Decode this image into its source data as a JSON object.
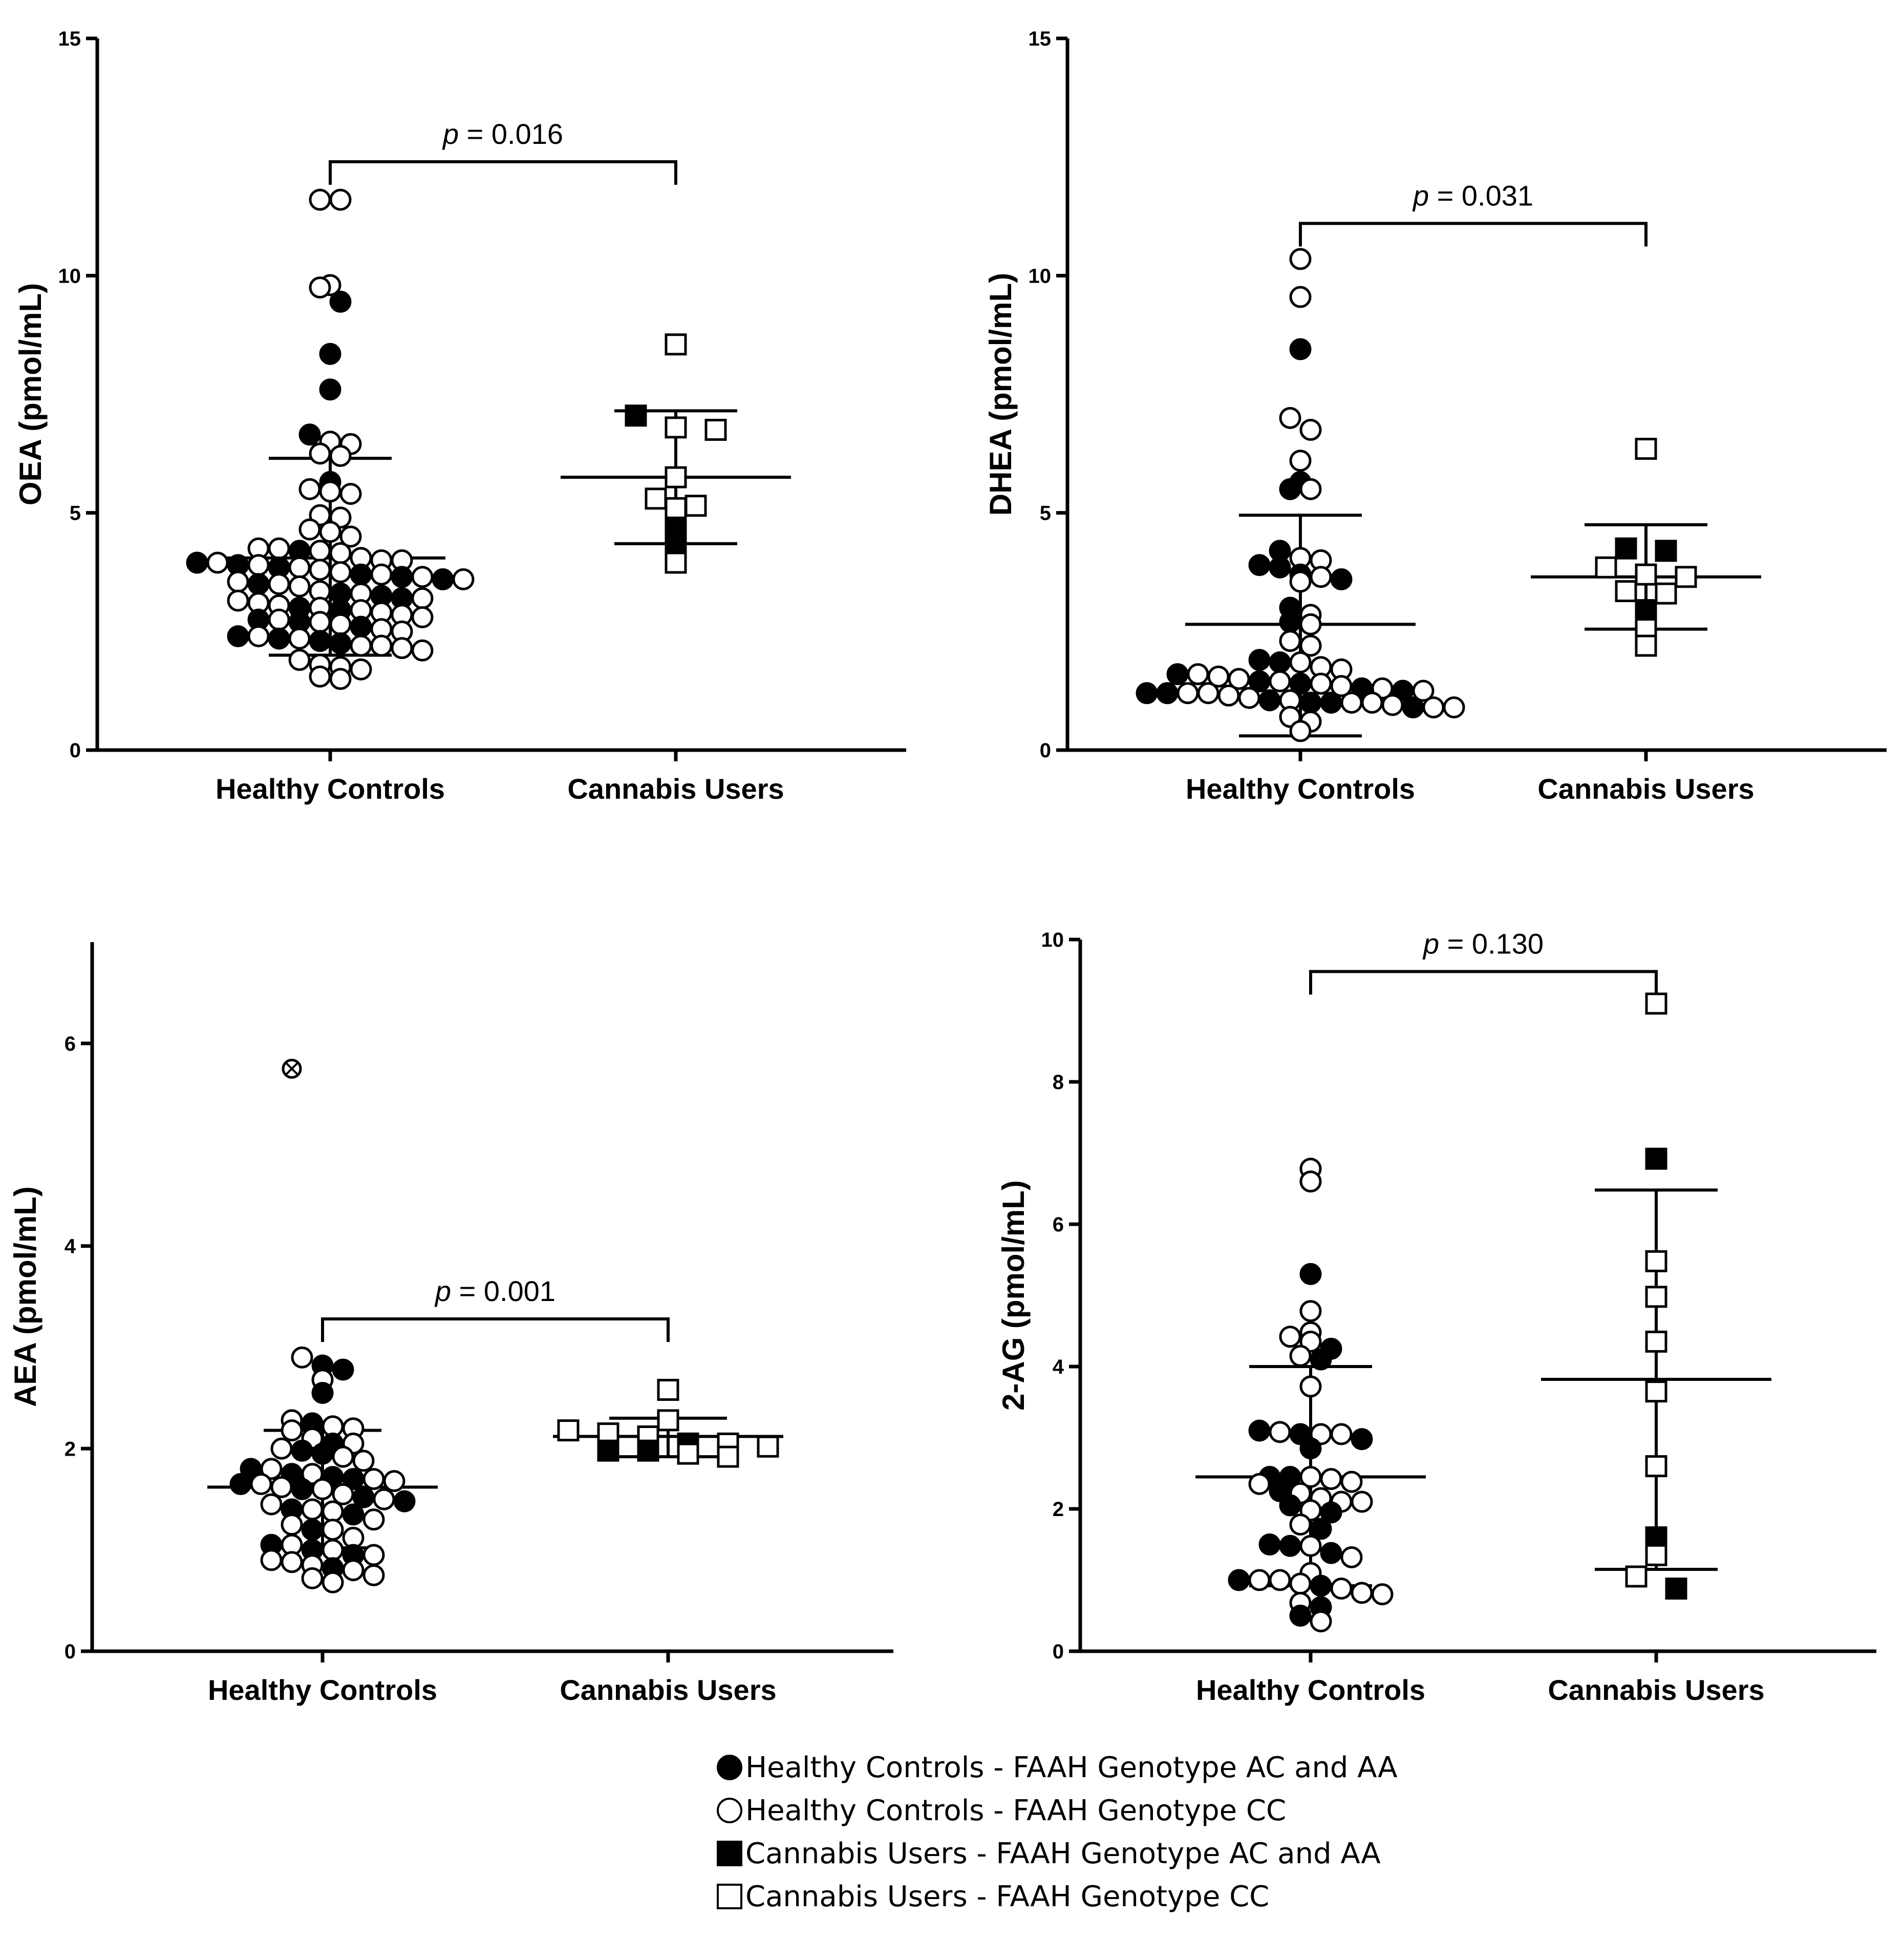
{
  "legend": {
    "items": [
      {
        "symbol": "circle-fill",
        "label": "Healthy Controls - FAAH Genotype AC and AA"
      },
      {
        "symbol": "circle-open",
        "label": "Healthy Controls - FAAH Genotype CC"
      },
      {
        "symbol": "square-fill",
        "label": "Cannabis Users - FAAH Genotype AC and AA"
      },
      {
        "symbol": "square-open",
        "label": "Cannabis Users - FAAH Genotype CC"
      }
    ]
  },
  "chart_data": [
    {
      "type": "scatter",
      "ylabel": "OEA (pmol/mL)",
      "ylim": [
        0,
        15
      ],
      "yticks": [
        0,
        5,
        10,
        15
      ],
      "categories": [
        "Healthy Controls",
        "Cannabis Users"
      ],
      "p_value_text": "= 0.016",
      "p_label": "p",
      "bracket_y": 12.4,
      "groups": [
        {
          "category": "Healthy Controls",
          "mean": 4.05,
          "sd_low": 2.0,
          "sd_high": 6.15,
          "filled": [
            9.45,
            8.35,
            7.6,
            6.65,
            5.65,
            4.2,
            3.95,
            3.9,
            3.85,
            3.7,
            3.65,
            3.6,
            3.5,
            3.3,
            3.25,
            3.2,
            3.0,
            2.95,
            2.75,
            2.7,
            2.6,
            2.4,
            2.35,
            2.3,
            2.25
          ],
          "open": [
            11.6,
            11.6,
            9.8,
            9.75,
            6.5,
            6.45,
            6.25,
            6.2,
            5.5,
            5.45,
            5.4,
            4.95,
            4.9,
            4.65,
            4.6,
            4.5,
            4.25,
            4.25,
            4.2,
            4.15,
            4.05,
            4.0,
            4.0,
            3.95,
            3.9,
            3.85,
            3.8,
            3.75,
            3.7,
            3.65,
            3.6,
            3.55,
            3.5,
            3.45,
            3.35,
            3.3,
            3.2,
            3.15,
            3.1,
            3.05,
            3.0,
            2.95,
            2.9,
            2.85,
            2.8,
            2.75,
            2.7,
            2.65,
            2.55,
            2.5,
            2.4,
            2.35,
            2.2,
            2.2,
            2.15,
            2.1,
            1.9,
            1.8,
            1.75,
            1.7,
            1.55,
            1.5
          ]
        },
        {
          "category": "Cannabis Users",
          "mean": 5.75,
          "sd_low": 4.35,
          "sd_high": 7.15,
          "filled": [
            7.05,
            4.65,
            4.25
          ],
          "open": [
            8.55,
            6.8,
            6.75,
            5.75,
            5.3,
            5.15,
            5.1,
            3.95
          ]
        }
      ]
    },
    {
      "type": "scatter",
      "ylabel": "DHEA (pmol/mL)",
      "ylim": [
        0,
        15
      ],
      "yticks": [
        0,
        5,
        10,
        15
      ],
      "categories": [
        "Healthy Controls",
        "Cannabis Users"
      ],
      "p_value_text": "= 0.031",
      "p_label": "p",
      "bracket_y": 11.1,
      "groups": [
        {
          "category": "Healthy Controls",
          "mean": 2.65,
          "sd_low": 0.3,
          "sd_high": 4.95,
          "filled": [
            8.45,
            5.65,
            5.5,
            4.2,
            3.9,
            3.85,
            3.7,
            3.6,
            3.0,
            2.7,
            1.9,
            1.85,
            1.6,
            1.45,
            1.4,
            1.3,
            1.25,
            1.2,
            1.2,
            1.05,
            1.0,
            1.0,
            0.9
          ],
          "open": [
            10.35,
            9.55,
            7.0,
            6.75,
            6.1,
            5.5,
            4.05,
            4.0,
            3.65,
            3.55,
            2.85,
            2.65,
            2.3,
            2.2,
            1.85,
            1.75,
            1.7,
            1.6,
            1.55,
            1.5,
            1.45,
            1.4,
            1.35,
            1.3,
            1.25,
            1.2,
            1.2,
            1.15,
            1.1,
            1.05,
            1.0,
            1.0,
            0.95,
            0.9,
            0.9,
            0.7,
            0.6,
            0.4
          ]
        },
        {
          "category": "Cannabis Users",
          "mean": 3.65,
          "sd_low": 2.55,
          "sd_high": 4.75,
          "filled": [
            4.25,
            4.2,
            2.95
          ],
          "open": [
            6.35,
            3.85,
            3.7,
            3.65,
            3.35,
            3.3,
            2.55,
            2.2
          ]
        }
      ]
    },
    {
      "type": "scatter",
      "ylabel": "AEA (pmol/mL)",
      "ylim": [
        0,
        7
      ],
      "yticks": [
        0,
        2,
        4,
        6
      ],
      "categories": [
        "Healthy Controls",
        "Cannabis Users"
      ],
      "p_value_text": "= 0.001",
      "p_label": "p",
      "bracket_y": 3.28,
      "outlier": 5.75,
      "groups": [
        {
          "category": "Healthy Controls",
          "mean": 1.62,
          "sd_low": 1.02,
          "sd_high": 2.18,
          "filled": [
            2.82,
            2.78,
            2.55,
            2.25,
            2.05,
            1.98,
            1.95,
            1.8,
            1.75,
            1.72,
            1.7,
            1.65,
            1.6,
            1.52,
            1.48,
            1.4,
            1.35,
            1.2,
            1.05,
            1.0,
            0.95,
            0.82
          ],
          "open": [
            2.9,
            2.68,
            2.28,
            2.22,
            2.2,
            2.18,
            2.1,
            2.05,
            2.0,
            1.92,
            1.88,
            1.8,
            1.75,
            1.7,
            1.68,
            1.65,
            1.62,
            1.6,
            1.55,
            1.5,
            1.45,
            1.4,
            1.38,
            1.3,
            1.25,
            1.2,
            1.12,
            1.05,
            1.0,
            0.95,
            0.9,
            0.88,
            0.85,
            0.8,
            0.75,
            0.72,
            0.68
          ]
        },
        {
          "category": "Cannabis Users",
          "mean": 2.12,
          "sd_low": 1.92,
          "sd_high": 2.3,
          "filled": [
            2.05,
            1.98,
            1.98
          ],
          "open": [
            2.58,
            2.28,
            2.18,
            2.15,
            2.12,
            2.05,
            2.02,
            1.95,
            1.92
          ]
        }
      ]
    },
    {
      "type": "scatter",
      "ylabel": "2-AG (pmol/mL)",
      "ylim": [
        0,
        10
      ],
      "yticks": [
        0,
        2,
        4,
        6,
        8,
        10
      ],
      "categories": [
        "Healthy Controls",
        "Cannabis Users"
      ],
      "p_value_text": "= 0.130",
      "p_label": "p",
      "bracket_y": 9.55,
      "groups": [
        {
          "category": "Healthy Controls",
          "mean": 2.45,
          "sd_low": 0.92,
          "sd_high": 4.0,
          "filled": [
            5.3,
            4.25,
            4.1,
            3.1,
            3.05,
            2.98,
            2.85,
            2.45,
            2.45,
            2.25,
            2.05,
            1.95,
            1.72,
            1.5,
            1.48,
            1.38,
            1.0,
            0.92,
            0.62,
            0.5
          ],
          "open": [
            6.78,
            6.6,
            4.78,
            4.48,
            4.42,
            4.35,
            4.15,
            3.72,
            3.08,
            3.05,
            3.05,
            2.45,
            2.42,
            2.38,
            2.35,
            2.22,
            2.15,
            2.1,
            2.1,
            1.98,
            1.78,
            1.48,
            1.32,
            1.1,
            1.0,
            1.0,
            0.95,
            0.88,
            0.82,
            0.8,
            0.68,
            0.42
          ]
        },
        {
          "category": "Cannabis Users",
          "mean": 3.82,
          "sd_low": 1.15,
          "sd_high": 6.48,
          "filled": [
            6.92,
            1.6,
            0.88
          ],
          "open": [
            9.1,
            5.48,
            4.98,
            4.35,
            3.65,
            2.6,
            1.35,
            1.05
          ]
        }
      ]
    }
  ]
}
